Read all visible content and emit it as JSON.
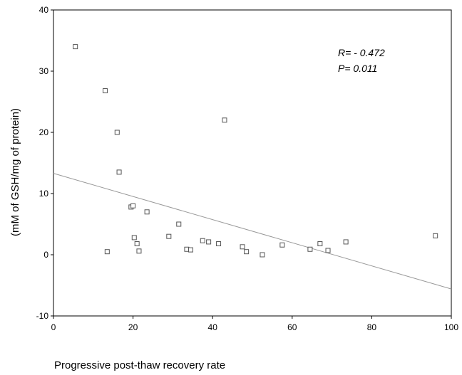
{
  "chart_data": {
    "type": "scatter",
    "xlabel": "Progressive post-thaw recovery rate",
    "ylabel": "(mM of GSH/mg of protein)",
    "xlim": [
      0,
      100
    ],
    "ylim": [
      -10,
      40
    ],
    "xticks": [
      "0",
      "20",
      "40",
      "60",
      "80",
      "100"
    ],
    "yticks": [
      "-10",
      "0",
      "10",
      "20",
      "30",
      "40"
    ],
    "grid": false,
    "legend": "none",
    "series": [
      {
        "points": [
          {
            "x": 5.5,
            "y": 34.0
          },
          {
            "x": 13.0,
            "y": 26.8
          },
          {
            "x": 16.0,
            "y": 20.0
          },
          {
            "x": 16.5,
            "y": 13.5
          },
          {
            "x": 13.5,
            "y": 0.5
          },
          {
            "x": 19.5,
            "y": 7.8
          },
          {
            "x": 20.0,
            "y": 8.0
          },
          {
            "x": 20.3,
            "y": 2.8
          },
          {
            "x": 21.0,
            "y": 1.8
          },
          {
            "x": 21.5,
            "y": 0.6
          },
          {
            "x": 23.5,
            "y": 7.0
          },
          {
            "x": 29.0,
            "y": 3.0
          },
          {
            "x": 31.5,
            "y": 5.0
          },
          {
            "x": 33.5,
            "y": 0.9
          },
          {
            "x": 34.5,
            "y": 0.8
          },
          {
            "x": 37.5,
            "y": 2.3
          },
          {
            "x": 39.0,
            "y": 2.1
          },
          {
            "x": 41.5,
            "y": 1.8
          },
          {
            "x": 43.0,
            "y": 22.0
          },
          {
            "x": 47.5,
            "y": 1.3
          },
          {
            "x": 48.5,
            "y": 0.5
          },
          {
            "x": 52.5,
            "y": 0.0
          },
          {
            "x": 57.5,
            "y": 1.6
          },
          {
            "x": 64.5,
            "y": 0.9
          },
          {
            "x": 67.0,
            "y": 1.8
          },
          {
            "x": 69.0,
            "y": 0.7
          },
          {
            "x": 73.5,
            "y": 2.1
          },
          {
            "x": 96.0,
            "y": 3.1
          }
        ]
      }
    ],
    "regression_line": {
      "x0": 0,
      "y0": 13.3,
      "x1": 100,
      "y1": -5.6,
      "color": "#999999"
    },
    "annotations": [
      "R= - 0.472",
      "P= 0.011"
    ],
    "colors": {
      "marker": "#555555",
      "axis": "#000000",
      "regression": "#999999"
    }
  }
}
